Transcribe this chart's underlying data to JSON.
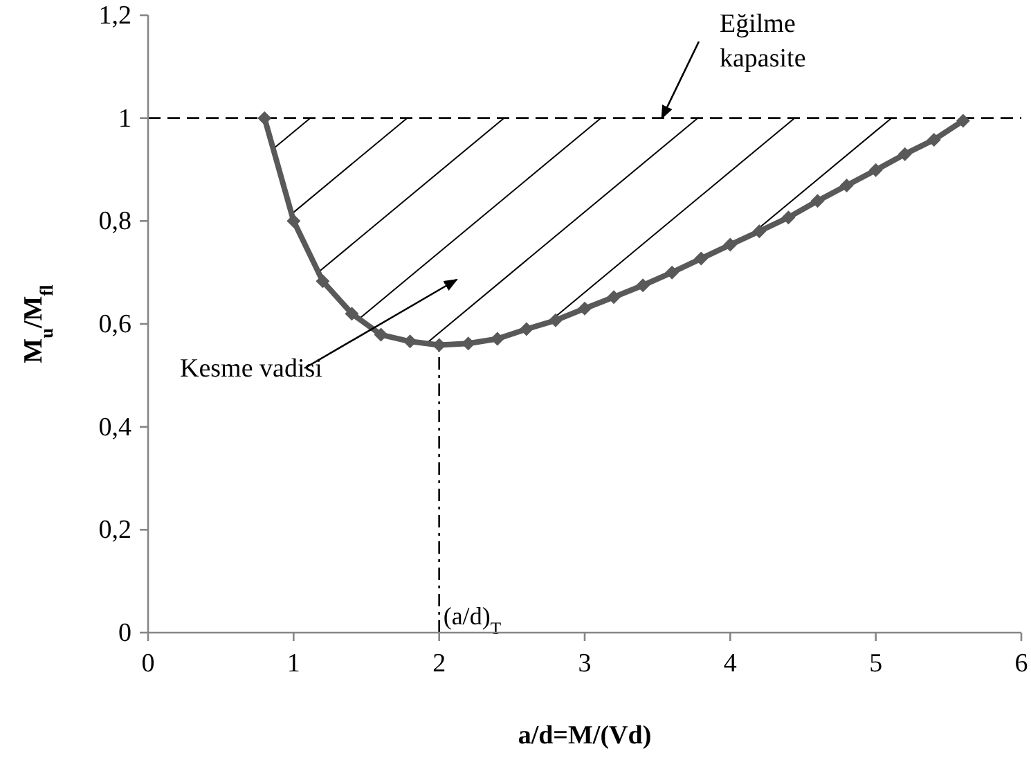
{
  "chart_data": {
    "type": "line",
    "xlabel": "a/d=M/(Vd)",
    "ylabel": "M$_{u}$/M$_{fl}$",
    "xlim": [
      0,
      6
    ],
    "ylim": [
      0,
      1.2
    ],
    "xticks": [
      0,
      1,
      2,
      3,
      4,
      5,
      6
    ],
    "yticks": [
      0,
      {
        "value": 0.2,
        "label": "0,2"
      },
      {
        "value": 0.4,
        "label": "0,4"
      },
      {
        "value": 0.6,
        "label": "0,6"
      },
      {
        "value": 0.8,
        "label": "0,8"
      },
      1,
      {
        "value": 1.2,
        "label": "1,2"
      }
    ],
    "grid": false,
    "marker": "diamond",
    "line_style": "solid",
    "series": [
      {
        "color": "#595959",
        "x": [
          0.8,
          1.0,
          1.2,
          1.4,
          1.6,
          1.8,
          2.0,
          2.2,
          2.4,
          2.6,
          2.8,
          3.0,
          3.2,
          3.4,
          3.6,
          3.8,
          4.0,
          4.2,
          4.4,
          4.6,
          4.8,
          5.0,
          5.2,
          5.4,
          5.6
        ],
        "values": [
          1.0,
          0.8,
          0.683,
          0.62,
          0.579,
          0.566,
          0.559,
          0.562,
          0.571,
          0.59,
          0.607,
          0.63,
          0.652,
          0.675,
          0.7,
          0.727,
          0.754,
          0.78,
          0.807,
          0.839,
          0.869,
          0.899,
          0.93,
          0.958,
          0.995
        ]
      }
    ],
    "ref_lines": [
      {
        "axis": "y",
        "value": 1,
        "label": null,
        "color": "#000000",
        "line_style": "dashed"
      },
      {
        "axis": "x",
        "value": 2,
        "label": "(a/d)$_{T}$",
        "color": "#000000",
        "line_style": "dashdot"
      }
    ],
    "annotations": [
      {
        "text": "Eğilme kapasite",
        "x": 3.53,
        "y": 1.0
      },
      "Kesme vadisi"
    ]
  }
}
